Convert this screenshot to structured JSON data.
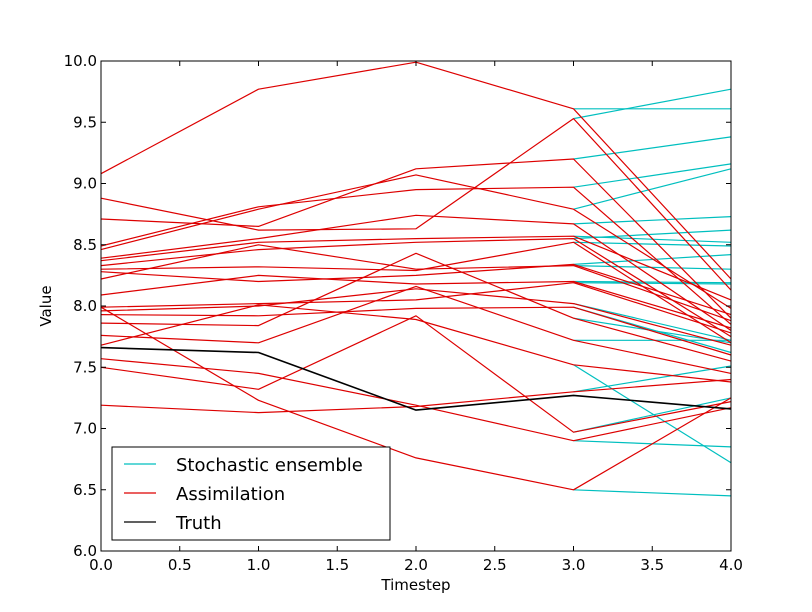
{
  "chart_data": {
    "type": "line",
    "xlabel": "Timestep",
    "ylabel": "Value",
    "xlim": [
      0,
      4
    ],
    "ylim": [
      6.0,
      10.0
    ],
    "x_ticks": [
      "0.0",
      "0.5",
      "1.0",
      "1.5",
      "2.0",
      "2.5",
      "3.0",
      "3.5",
      "4.0"
    ],
    "y_ticks": [
      "6.0",
      "6.5",
      "7.0",
      "7.5",
      "8.0",
      "8.5",
      "9.0",
      "9.5",
      "10.0"
    ],
    "legend_position": "lower-left",
    "legend": [
      {
        "label": "Stochastic ensemble",
        "color": "#00bfbf"
      },
      {
        "label": "Assimilation",
        "color": "#dd0000"
      },
      {
        "label": "Truth",
        "color": "#000000"
      }
    ],
    "series": [
      {
        "name": "Truth",
        "group": "truth",
        "color": "#000000",
        "x": [
          0,
          1,
          2,
          3,
          4
        ],
        "y": [
          7.66,
          7.62,
          7.15,
          7.27,
          7.16
        ]
      },
      {
        "group": "ensemble",
        "color": "#00bfbf",
        "x": [
          3,
          4
        ],
        "y": [
          9.61,
          9.61
        ]
      },
      {
        "group": "ensemble",
        "color": "#00bfbf",
        "x": [
          3,
          4
        ],
        "y": [
          9.53,
          9.77
        ]
      },
      {
        "group": "ensemble",
        "color": "#00bfbf",
        "x": [
          3,
          4
        ],
        "y": [
          9.2,
          9.38
        ]
      },
      {
        "group": "ensemble",
        "color": "#00bfbf",
        "x": [
          3,
          4
        ],
        "y": [
          8.97,
          9.16
        ]
      },
      {
        "group": "ensemble",
        "color": "#00bfbf",
        "x": [
          3,
          4
        ],
        "y": [
          8.79,
          9.12
        ]
      },
      {
        "group": "ensemble",
        "color": "#00bfbf",
        "x": [
          3,
          4
        ],
        "y": [
          8.67,
          8.73
        ]
      },
      {
        "group": "ensemble",
        "color": "#00bfbf",
        "x": [
          3,
          4
        ],
        "y": [
          8.57,
          8.52
        ]
      },
      {
        "group": "ensemble",
        "color": "#00bfbf",
        "x": [
          3,
          4
        ],
        "y": [
          8.55,
          8.62
        ]
      },
      {
        "group": "ensemble",
        "color": "#00bfbf",
        "x": [
          3,
          4
        ],
        "y": [
          8.52,
          8.49
        ]
      },
      {
        "group": "ensemble",
        "color": "#00bfbf",
        "x": [
          3,
          4
        ],
        "y": [
          8.34,
          8.42
        ]
      },
      {
        "group": "ensemble",
        "color": "#00bfbf",
        "x": [
          3,
          4
        ],
        "y": [
          8.33,
          8.3
        ]
      },
      {
        "group": "ensemble",
        "color": "#00bfbf",
        "x": [
          3,
          4
        ],
        "y": [
          8.2,
          8.19
        ]
      },
      {
        "group": "ensemble",
        "color": "#00bfbf",
        "x": [
          3,
          4
        ],
        "y": [
          8.19,
          8.18
        ]
      },
      {
        "group": "ensemble",
        "color": "#00bfbf",
        "x": [
          3,
          4
        ],
        "y": [
          8.02,
          7.72
        ]
      },
      {
        "group": "ensemble",
        "color": "#00bfbf",
        "x": [
          3,
          4
        ],
        "y": [
          7.99,
          7.62
        ]
      },
      {
        "group": "ensemble",
        "color": "#00bfbf",
        "x": [
          3,
          4
        ],
        "y": [
          7.9,
          7.7
        ]
      },
      {
        "group": "ensemble",
        "color": "#00bfbf",
        "x": [
          3,
          4
        ],
        "y": [
          7.72,
          7.72
        ]
      },
      {
        "group": "ensemble",
        "color": "#00bfbf",
        "x": [
          3,
          4
        ],
        "y": [
          7.52,
          6.72
        ]
      },
      {
        "group": "ensemble",
        "color": "#00bfbf",
        "x": [
          3,
          4
        ],
        "y": [
          7.3,
          7.51
        ]
      },
      {
        "group": "ensemble",
        "color": "#00bfbf",
        "x": [
          3,
          4
        ],
        "y": [
          6.97,
          7.25
        ]
      },
      {
        "group": "ensemble",
        "color": "#00bfbf",
        "x": [
          3,
          4
        ],
        "y": [
          6.9,
          6.85
        ]
      },
      {
        "group": "ensemble",
        "color": "#00bfbf",
        "x": [
          3,
          4
        ],
        "y": [
          6.5,
          6.45
        ]
      },
      {
        "group": "assimilation",
        "color": "#dd0000",
        "x": [
          0,
          1,
          2,
          3,
          4
        ],
        "y": [
          9.08,
          9.77,
          9.99,
          9.61,
          8.22
        ]
      },
      {
        "group": "assimilation",
        "color": "#dd0000",
        "x": [
          0,
          1,
          2,
          3,
          4
        ],
        "y": [
          8.88,
          8.62,
          8.63,
          9.53,
          8.13
        ]
      },
      {
        "group": "assimilation",
        "color": "#dd0000",
        "x": [
          0,
          1,
          2,
          3,
          4
        ],
        "y": [
          8.71,
          8.65,
          9.12,
          9.2,
          7.9
        ]
      },
      {
        "group": "assimilation",
        "color": "#dd0000",
        "x": [
          0,
          1,
          2,
          3,
          4
        ],
        "y": [
          8.49,
          8.81,
          8.95,
          8.97,
          7.85
        ]
      },
      {
        "group": "assimilation",
        "color": "#dd0000",
        "x": [
          0,
          1,
          2,
          3,
          4
        ],
        "y": [
          8.46,
          8.79,
          9.07,
          8.79,
          7.98
        ]
      },
      {
        "group": "assimilation",
        "color": "#dd0000",
        "x": [
          0,
          1,
          2,
          3,
          4
        ],
        "y": [
          8.39,
          8.55,
          8.74,
          8.67,
          7.8
        ]
      },
      {
        "group": "assimilation",
        "color": "#dd0000",
        "x": [
          0,
          1,
          2,
          3,
          4
        ],
        "y": [
          8.37,
          8.52,
          8.55,
          8.57,
          8.05
        ]
      },
      {
        "group": "assimilation",
        "color": "#dd0000",
        "x": [
          0,
          1,
          2,
          3,
          4
        ],
        "y": [
          8.33,
          8.46,
          8.52,
          8.55,
          7.75
        ]
      },
      {
        "group": "assimilation",
        "color": "#dd0000",
        "x": [
          0,
          1,
          2,
          3,
          4
        ],
        "y": [
          8.3,
          8.32,
          8.29,
          8.52,
          7.7
        ]
      },
      {
        "group": "assimilation",
        "color": "#dd0000",
        "x": [
          0,
          1,
          2,
          3,
          4
        ],
        "y": [
          8.28,
          8.2,
          8.25,
          8.34,
          7.93
        ]
      },
      {
        "group": "assimilation",
        "color": "#dd0000",
        "x": [
          0,
          1,
          2,
          3,
          4
        ],
        "y": [
          8.22,
          8.5,
          8.3,
          8.33,
          7.88
        ]
      },
      {
        "group": "assimilation",
        "color": "#dd0000",
        "x": [
          0,
          1,
          2,
          3,
          4
        ],
        "y": [
          8.09,
          8.25,
          8.18,
          8.2,
          7.82
        ]
      },
      {
        "group": "assimilation",
        "color": "#dd0000",
        "x": [
          0,
          1,
          2,
          3,
          4
        ],
        "y": [
          7.99,
          8.02,
          8.05,
          8.19,
          7.78
        ]
      },
      {
        "group": "assimilation",
        "color": "#dd0000",
        "x": [
          0,
          1,
          2,
          3,
          4
        ],
        "y": [
          7.96,
          8.0,
          8.14,
          8.02,
          7.68
        ]
      },
      {
        "group": "assimilation",
        "color": "#dd0000",
        "x": [
          0,
          1,
          2,
          3,
          4
        ],
        "y": [
          7.93,
          7.92,
          7.98,
          7.99,
          7.6
        ]
      },
      {
        "group": "assimilation",
        "color": "#dd0000",
        "x": [
          0,
          1,
          2,
          3,
          4
        ],
        "y": [
          7.86,
          7.84,
          8.43,
          7.9,
          7.55
        ]
      },
      {
        "group": "assimilation",
        "color": "#dd0000",
        "x": [
          0,
          1,
          2,
          3,
          4
        ],
        "y": [
          7.76,
          7.7,
          8.16,
          7.72,
          7.45
        ]
      },
      {
        "group": "assimilation",
        "color": "#dd0000",
        "x": [
          0,
          1,
          2,
          3,
          4
        ],
        "y": [
          7.68,
          8.01,
          7.89,
          7.52,
          7.38
        ]
      },
      {
        "group": "assimilation",
        "color": "#dd0000",
        "x": [
          0,
          1,
          2,
          3,
          4
        ],
        "y": [
          7.99,
          7.23,
          6.76,
          6.5,
          7.25
        ]
      },
      {
        "group": "assimilation",
        "color": "#dd0000",
        "x": [
          0,
          1,
          2,
          3,
          4
        ],
        "y": [
          7.57,
          7.45,
          7.19,
          6.9,
          7.17
        ]
      },
      {
        "group": "assimilation",
        "color": "#dd0000",
        "x": [
          0,
          1,
          2,
          3,
          4
        ],
        "y": [
          7.5,
          7.32,
          7.92,
          6.97,
          7.22
        ]
      },
      {
        "group": "assimilation",
        "color": "#dd0000",
        "x": [
          0,
          1,
          2,
          3,
          4
        ],
        "y": [
          7.19,
          7.13,
          7.18,
          7.3,
          7.4
        ]
      }
    ]
  }
}
